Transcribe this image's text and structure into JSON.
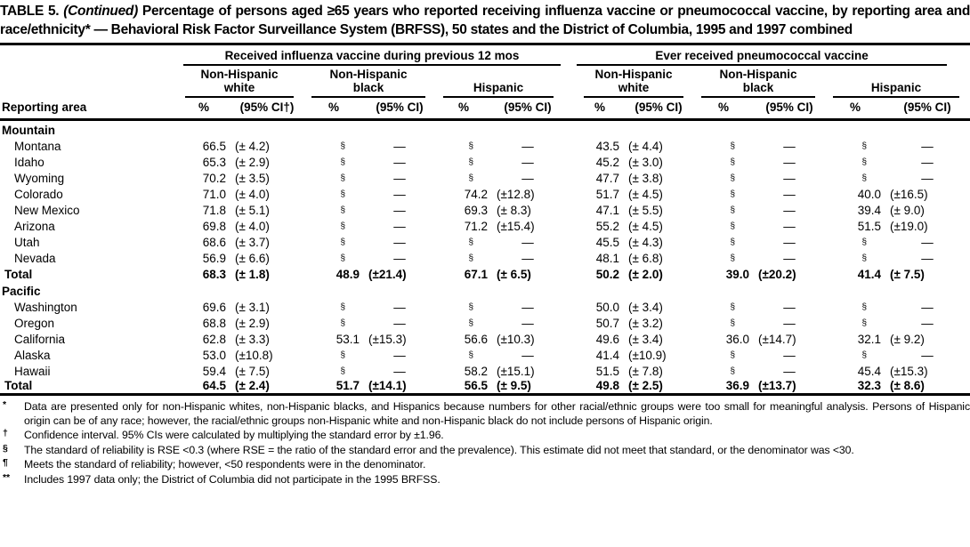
{
  "colors": {
    "text": "#000000",
    "background": "#ffffff"
  },
  "title": {
    "prefix": "TABLE 5. ",
    "continued": "(Continued)",
    "rest": " Percentage of persons aged ≥65 years who reported receiving influenza vaccine or pneumococcal vaccine, by reporting area and race/ethnicity* — Behavioral Risk Factor Surveillance System (BRFSS), 50 states and the District of Columbia, 1995 and 1997 combined"
  },
  "table": {
    "row_header_label": "Reporting area",
    "groups": [
      {
        "label": "Received influenza vaccine during previous 12 mos",
        "subgroups": [
          "Non-Hispanic\nwhite",
          "Non-Hispanic\nblack",
          "Hispanic"
        ]
      },
      {
        "label": "Ever received pneumococcal vaccine",
        "subgroups": [
          "Non-Hispanic\nwhite",
          "Non-Hispanic\nblack",
          "Hispanic"
        ]
      }
    ],
    "pct_label": "%",
    "ci_labels": [
      "(95% CI†)",
      "(95% CI)",
      "(95% CI)",
      "(95% CI)",
      "(95% CI)",
      "(95% CI)"
    ],
    "sections": [
      {
        "name": "Mountain",
        "rows": [
          {
            "area": "Montana",
            "bold": false,
            "cells": [
              [
                "66.5",
                "(± 4.2)"
              ],
              [
                "§",
                "—"
              ],
              [
                "§",
                "—"
              ],
              [
                "43.5",
                "(± 4.4)"
              ],
              [
                "§",
                "—"
              ],
              [
                "§",
                "—"
              ]
            ]
          },
          {
            "area": "Idaho",
            "bold": false,
            "cells": [
              [
                "65.3",
                "(± 2.9)"
              ],
              [
                "§",
                "—"
              ],
              [
                "§",
                "—"
              ],
              [
                "45.2",
                "(± 3.0)"
              ],
              [
                "§",
                "—"
              ],
              [
                "§",
                "—"
              ]
            ]
          },
          {
            "area": "Wyoming",
            "bold": false,
            "cells": [
              [
                "70.2",
                "(± 3.5)"
              ],
              [
                "§",
                "—"
              ],
              [
                "§",
                "—"
              ],
              [
                "47.7",
                "(± 3.8)"
              ],
              [
                "§",
                "—"
              ],
              [
                "§",
                "—"
              ]
            ]
          },
          {
            "area": "Colorado",
            "bold": false,
            "cells": [
              [
                "71.0",
                "(± 4.0)"
              ],
              [
                "§",
                "—"
              ],
              [
                "74.2",
                "(±12.8)"
              ],
              [
                "51.7",
                "(± 4.5)"
              ],
              [
                "§",
                "—"
              ],
              [
                "40.0",
                "(±16.5)"
              ]
            ]
          },
          {
            "area": "New Mexico",
            "bold": false,
            "cells": [
              [
                "71.8",
                "(± 5.1)"
              ],
              [
                "§",
                "—"
              ],
              [
                "69.3",
                "(± 8.3)"
              ],
              [
                "47.1",
                "(± 5.5)"
              ],
              [
                "§",
                "—"
              ],
              [
                "39.4",
                "(± 9.0)"
              ]
            ]
          },
          {
            "area": "Arizona",
            "bold": false,
            "cells": [
              [
                "69.8",
                "(± 4.0)"
              ],
              [
                "§",
                "—"
              ],
              [
                "71.2",
                "(±15.4)"
              ],
              [
                "55.2",
                "(± 4.5)"
              ],
              [
                "§",
                "—"
              ],
              [
                "51.5",
                "(±19.0)"
              ]
            ]
          },
          {
            "area": "Utah",
            "bold": false,
            "cells": [
              [
                "68.6",
                "(± 3.7)"
              ],
              [
                "§",
                "—"
              ],
              [
                "§",
                "—"
              ],
              [
                "45.5",
                "(± 4.3)"
              ],
              [
                "§",
                "—"
              ],
              [
                "§",
                "—"
              ]
            ]
          },
          {
            "area": "Nevada",
            "bold": false,
            "cells": [
              [
                "56.9",
                "(± 6.6)"
              ],
              [
                "§",
                "—"
              ],
              [
                "§",
                "—"
              ],
              [
                "48.1",
                "(± 6.8)"
              ],
              [
                "§",
                "—"
              ],
              [
                "§",
                "—"
              ]
            ]
          },
          {
            "area": "Total",
            "bold": true,
            "cells": [
              [
                "68.3",
                "(± 1.8)"
              ],
              [
                "48.9",
                "(±21.4)"
              ],
              [
                "67.1",
                "(± 6.5)"
              ],
              [
                "50.2",
                "(± 2.0)"
              ],
              [
                "39.0",
                "(±20.2)"
              ],
              [
                "41.4",
                "(± 7.5)"
              ]
            ]
          }
        ]
      },
      {
        "name": "Pacific",
        "rows": [
          {
            "area": "Washington",
            "bold": false,
            "cells": [
              [
                "69.6",
                "(± 3.1)"
              ],
              [
                "§",
                "—"
              ],
              [
                "§",
                "—"
              ],
              [
                "50.0",
                "(± 3.4)"
              ],
              [
                "§",
                "—"
              ],
              [
                "§",
                "—"
              ]
            ]
          },
          {
            "area": "Oregon",
            "bold": false,
            "cells": [
              [
                "68.8",
                "(± 2.9)"
              ],
              [
                "§",
                "—"
              ],
              [
                "§",
                "—"
              ],
              [
                "50.7",
                "(± 3.2)"
              ],
              [
                "§",
                "—"
              ],
              [
                "§",
                "—"
              ]
            ]
          },
          {
            "area": "California",
            "bold": false,
            "cells": [
              [
                "62.8",
                "(± 3.3)"
              ],
              [
                "53.1",
                "(±15.3)"
              ],
              [
                "56.6",
                "(±10.3)"
              ],
              [
                "49.6",
                "(± 3.4)"
              ],
              [
                "36.0",
                "(±14.7)"
              ],
              [
                "32.1",
                "(± 9.2)"
              ]
            ]
          },
          {
            "area": "Alaska",
            "bold": false,
            "cells": [
              [
                "53.0",
                "(±10.8)"
              ],
              [
                "§",
                "—"
              ],
              [
                "§",
                "—"
              ],
              [
                "41.4",
                "(±10.9)"
              ],
              [
                "§",
                "—"
              ],
              [
                "§",
                "—"
              ]
            ]
          },
          {
            "area": "Hawaii",
            "bold": false,
            "cells": [
              [
                "59.4",
                "(± 7.5)"
              ],
              [
                "§",
                "—"
              ],
              [
                "58.2",
                "(±15.1)"
              ],
              [
                "51.5",
                "(± 7.8)"
              ],
              [
                "§",
                "—"
              ],
              [
                "45.4",
                "(±15.3)"
              ]
            ]
          },
          {
            "area": "Total",
            "bold": true,
            "cells": [
              [
                "64.5",
                "(± 2.4)"
              ],
              [
                "51.7",
                "(±14.1)"
              ],
              [
                "56.5",
                "(± 9.5)"
              ],
              [
                "49.8",
                "(± 2.5)"
              ],
              [
                "36.9",
                "(±13.7)"
              ],
              [
                "32.3",
                "(± 8.6)"
              ]
            ]
          }
        ]
      }
    ]
  },
  "footnotes": [
    {
      "marker": "*",
      "text": "Data are presented only for non-Hispanic whites, non-Hispanic blacks, and Hispanics because numbers for other racial/ethnic groups were too small for meaningful analysis. Persons of Hispanic origin can be of any race; however, the racial/ethnic groups non-Hispanic white and non-Hispanic black do not include persons of Hispanic origin."
    },
    {
      "marker": "†",
      "text": "Confidence interval. 95% CIs were calculated by multiplying the standard error by ±1.96."
    },
    {
      "marker": "§",
      "text": "The standard of reliability is RSE <0.3 (where RSE = the ratio of the standard error and the prevalence). This estimate did not meet that standard, or the denominator was <30."
    },
    {
      "marker": "¶",
      "text": "Meets the standard of reliability; however, <50 respondents were in the denominator."
    },
    {
      "marker": "**",
      "text": "Includes 1997 data only; the District of Columbia did not participate in the 1995 BRFSS."
    }
  ]
}
